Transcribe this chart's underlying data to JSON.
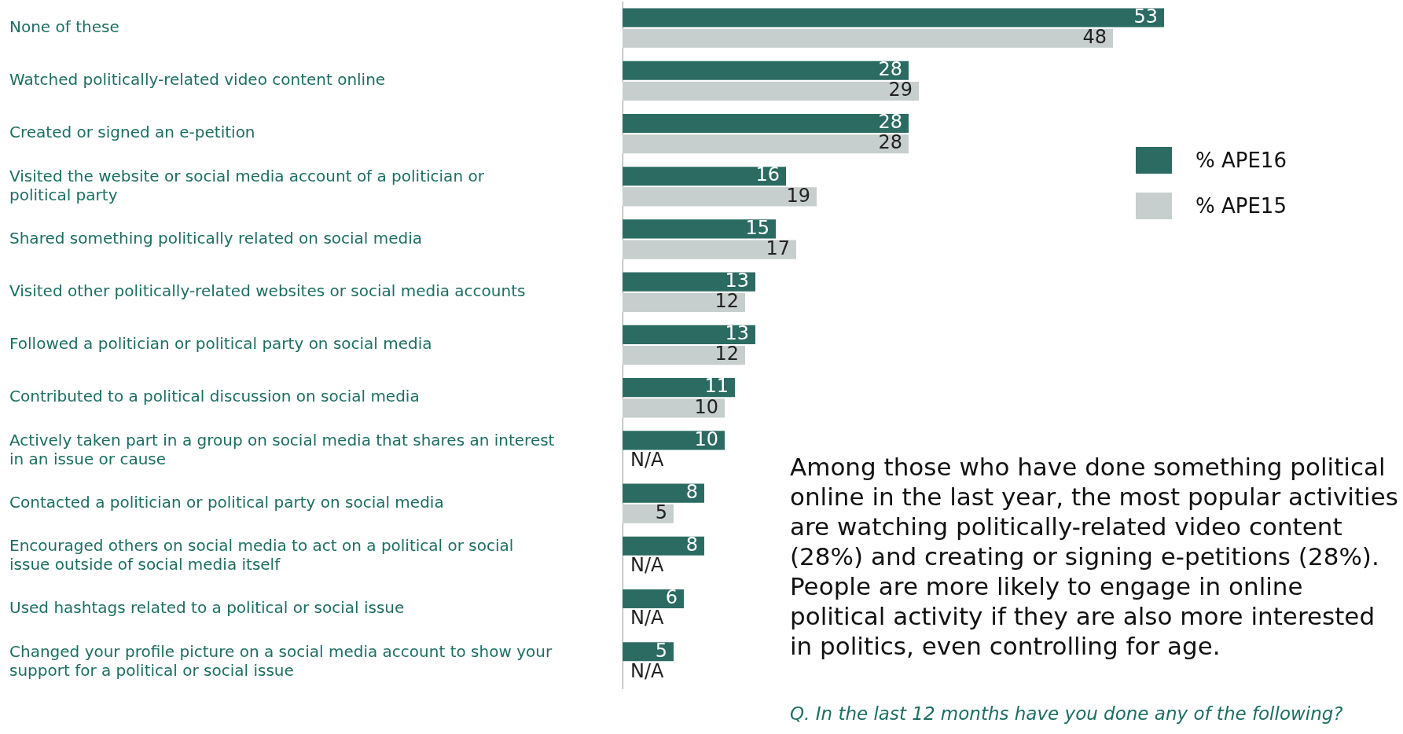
{
  "chart_data": {
    "type": "bar",
    "orientation": "horizontal",
    "categories": [
      "None of these",
      "Watched politically-related video content online",
      "Created or signed an e-petition",
      "Visited the website or social media account of a politician or political party",
      "Shared something politically related on social media",
      "Visited other politically-related websites or social media accounts",
      "Followed a politician or political party on social media",
      "Contributed to a political discussion on social media",
      "Actively taken part in a group on social media that shares an interest in an issue or cause",
      "Contacted a politician or political party on social media",
      "Encouraged others on social media to act on a political or social issue outside of social media itself",
      "Used hashtags related to a political or social issue",
      "Changed your profile picture on a social media account to show your support for a political or social issue"
    ],
    "series": [
      {
        "name": "% APE16",
        "color": "#2b6b62",
        "values": [
          53,
          28,
          28,
          16,
          15,
          13,
          13,
          11,
          10,
          8,
          8,
          6,
          5
        ],
        "value_labels": [
          "53",
          "28",
          "28",
          "16",
          "15",
          "13",
          "13",
          "11",
          "10",
          "8",
          "8",
          "6",
          "5"
        ]
      },
      {
        "name": "% APE15",
        "color": "#c6cfcd",
        "values": [
          48,
          29,
          28,
          19,
          17,
          12,
          12,
          10,
          null,
          5,
          null,
          null,
          null
        ],
        "value_labels": [
          "48",
          "29",
          "28",
          "19",
          "17",
          "12",
          "12",
          "10",
          "N/A",
          "5",
          "N/A",
          "N/A",
          "N/A"
        ]
      }
    ],
    "annotations": [
      "Among those who have done something political online in the last year, the most popular activities are watching politically-related video content (28%) and creating or signing e-petitions (28%). People are more likely to engage in online political activity if they are also more interested in politics, even controlling for age.",
      "Q. In the last 12 months have you done any of the following?"
    ],
    "legend": "top right",
    "tick_labels": "y"
  }
}
